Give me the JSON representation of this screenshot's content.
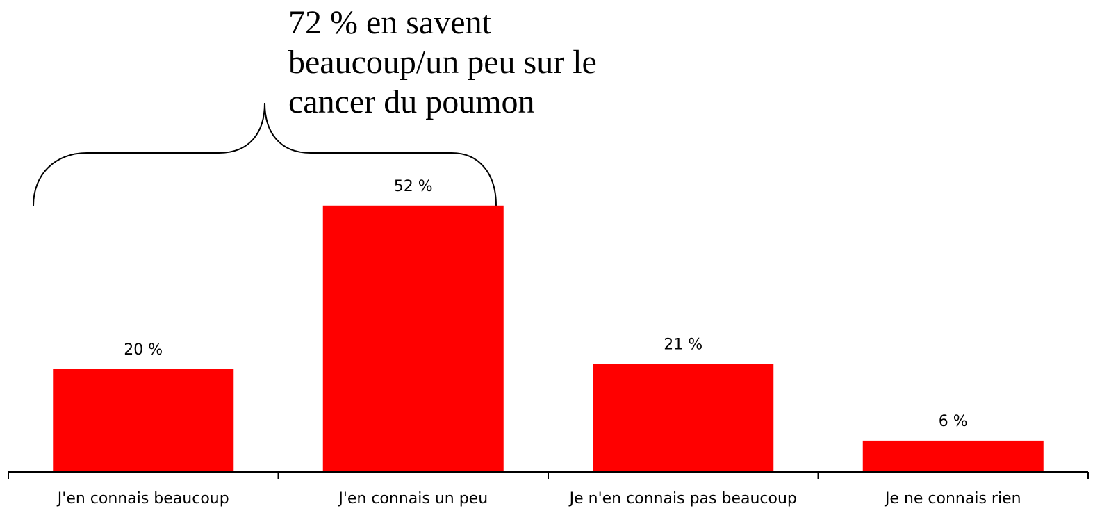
{
  "chart_data": {
    "type": "bar",
    "annotation": "72 % en savent beaucoup/un peu sur le cancer du poumon",
    "categories": [
      "J'en connais beaucoup",
      "J'en connais un peu",
      "Je n'en connais pas beaucoup",
      "Je ne connais rien"
    ],
    "values": [
      20,
      52,
      21,
      6
    ],
    "value_labels": [
      "20 %",
      "52 %",
      "21 %",
      "6 %"
    ],
    "color": "#ff0000"
  }
}
